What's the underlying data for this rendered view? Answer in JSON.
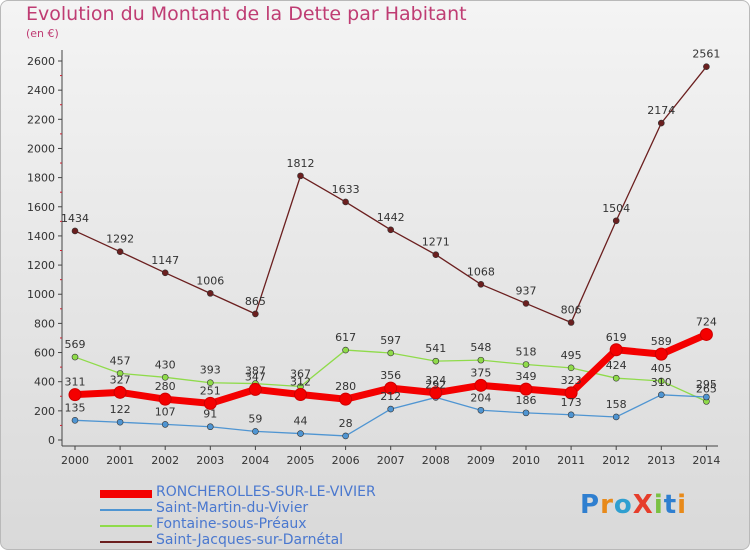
{
  "title": "Evolution du Montant de la Dette par Habitant",
  "unit_label": "(en €)",
  "logo_text": "ProXiti",
  "chart_data": {
    "type": "line",
    "title": "Evolution du Montant de la Dette par Habitant",
    "ylabel": "(en €)",
    "x": [
      2000,
      2001,
      2002,
      2003,
      2004,
      2005,
      2006,
      2007,
      2008,
      2009,
      2010,
      2011,
      2012,
      2013,
      2014
    ],
    "ylim": [
      0,
      2600
    ],
    "yticks": [
      0,
      200,
      400,
      600,
      800,
      1000,
      1200,
      1400,
      1600,
      1800,
      2000,
      2200,
      2400,
      2600
    ],
    "grid": false,
    "legend_position": "bottom-left",
    "series": [
      {
        "name": "RONCHEROLLES-SUR-LE-VIVIER",
        "color": "#f40000",
        "values": [
          311,
          327,
          280,
          251,
          347,
          312,
          280,
          356,
          324,
          375,
          349,
          323,
          619,
          589,
          724
        ]
      },
      {
        "name": "Saint-Martin-du-Vivier",
        "color": "#4f95d2",
        "values": [
          135,
          122,
          107,
          91,
          59,
          44,
          28,
          212,
          292,
          204,
          186,
          173,
          158,
          310,
          295
        ]
      },
      {
        "name": "Fontaine-sous-Préaux",
        "color": "#8fdb4a",
        "values": [
          569,
          457,
          430,
          393,
          387,
          367,
          617,
          597,
          541,
          548,
          518,
          495,
          424,
          405,
          265
        ]
      },
      {
        "name": "Saint-Jacques-sur-Darnétal",
        "color": "#6b1f1f",
        "values": [
          1434,
          1292,
          1147,
          1006,
          865,
          1812,
          1633,
          1442,
          1271,
          1068,
          937,
          806,
          1504,
          2174,
          2561
        ]
      }
    ]
  }
}
